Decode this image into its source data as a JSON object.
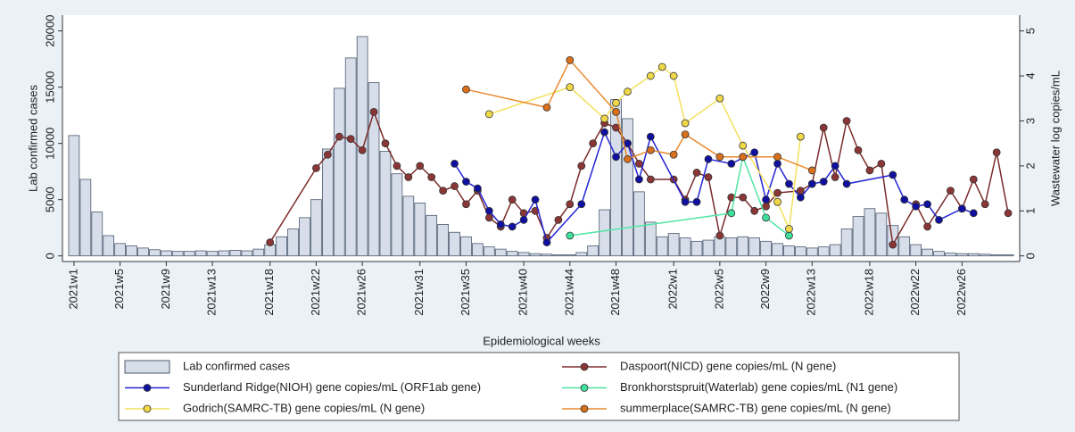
{
  "chart_data": {
    "type": "bar",
    "xlabel": "Epidemiological weeks",
    "ylabel": "Lab  confirmed cases",
    "y2label": "Wastewater log copies/mL",
    "xlim": [
      -1,
      82
    ],
    "xticks": [
      {
        "value": 0,
        "label": "2021w1"
      },
      {
        "value": 4,
        "label": "2021w5"
      },
      {
        "value": 8,
        "label": "2021w9"
      },
      {
        "value": 12,
        "label": "2021w13"
      },
      {
        "value": 17,
        "label": "2021w18"
      },
      {
        "value": 21,
        "label": "2021w22"
      },
      {
        "value": 25,
        "label": "2021w26"
      },
      {
        "value": 30,
        "label": "2021w31"
      },
      {
        "value": 34,
        "label": "2021w35"
      },
      {
        "value": 39,
        "label": "2021w40"
      },
      {
        "value": 43,
        "label": "2021w44"
      },
      {
        "value": 47,
        "label": "2021w48"
      },
      {
        "value": 52,
        "label": "2022w1"
      },
      {
        "value": 56,
        "label": "2022w5"
      },
      {
        "value": 60,
        "label": "2022w9"
      },
      {
        "value": 64,
        "label": "2022w13"
      },
      {
        "value": 69,
        "label": "2022w18"
      },
      {
        "value": 73,
        "label": "2022w22"
      },
      {
        "value": 77,
        "label": "2022w26"
      }
    ],
    "ylim": [
      -500,
      21400
    ],
    "yticks": [
      0,
      5000,
      10000,
      15000,
      20000
    ],
    "y2lim": [
      -0.125,
      5.35
    ],
    "y2ticks": [
      0,
      1,
      2,
      3,
      4,
      5
    ],
    "grid": false,
    "series": [
      {
        "name": "Lab  confirmed cases",
        "type": "bar",
        "color": "#d7deea",
        "marker_color": "#4c5a6e",
        "x": [
          0,
          1,
          2,
          3,
          4,
          5,
          6,
          7,
          8,
          9,
          10,
          11,
          12,
          13,
          14,
          15,
          16,
          17,
          18,
          19,
          20,
          21,
          22,
          23,
          24,
          25,
          26,
          27,
          28,
          29,
          30,
          31,
          32,
          33,
          34,
          35,
          36,
          37,
          38,
          39,
          40,
          41,
          42,
          43,
          44,
          45,
          46,
          47,
          48,
          49,
          50,
          51,
          52,
          53,
          54,
          55,
          56,
          57,
          58,
          59,
          60,
          61,
          62,
          63,
          64,
          65,
          66,
          67,
          68,
          69,
          70,
          71,
          72,
          73,
          74,
          75,
          76,
          77,
          78,
          79,
          80,
          81
        ],
        "values": [
          10700,
          6800,
          3900,
          1800,
          1100,
          900,
          700,
          550,
          450,
          400,
          400,
          450,
          400,
          450,
          500,
          450,
          600,
          1000,
          1700,
          2400,
          3400,
          5000,
          9500,
          14900,
          17600,
          19500,
          15400,
          9300,
          7300,
          5300,
          4700,
          3600,
          2800,
          2100,
          1700,
          1100,
          800,
          600,
          400,
          300,
          200,
          150,
          100,
          100,
          300,
          900,
          4100,
          13900,
          12200,
          5700,
          3000,
          1700,
          2000,
          1600,
          1300,
          1400,
          1700,
          1600,
          1700,
          1600,
          1300,
          1100,
          900,
          800,
          700,
          800,
          1000,
          2400,
          3500,
          4200,
          3800,
          2700,
          1700,
          1000,
          600,
          400,
          250,
          200,
          200,
          150,
          100,
          100
        ]
      },
      {
        "name": "Daspoort(NICD) gene copies/mL (N gene)",
        "type": "line",
        "axis": "y2",
        "color": "#7b2a2a",
        "marker_color": "#8b3636",
        "x": [
          17,
          21,
          22,
          23,
          24,
          25,
          26,
          27,
          28,
          29,
          30,
          31,
          32,
          33,
          34,
          35,
          36,
          37,
          38,
          39,
          40,
          41,
          42,
          43,
          44,
          45,
          46,
          47,
          48,
          49,
          50,
          52,
          53,
          54,
          55,
          56,
          57,
          58,
          59,
          60,
          61,
          63,
          64,
          65,
          66,
          67,
          68,
          69,
          70,
          71,
          73,
          74,
          76,
          77,
          78,
          79,
          80,
          81
        ],
        "values": [
          0.3,
          1.95,
          2.25,
          2.65,
          2.6,
          2.35,
          3.2,
          2.5,
          2.0,
          1.75,
          2.0,
          1.75,
          1.45,
          1.55,
          1.15,
          1.45,
          0.85,
          0.65,
          1.25,
          0.95,
          1.0,
          0.4,
          0.8,
          1.15,
          2.0,
          2.5,
          2.95,
          2.85,
          2.5,
          2.05,
          1.7,
          1.7,
          1.25,
          1.85,
          1.75,
          0.45,
          1.3,
          1.3,
          1.0,
          1.1,
          1.4,
          1.45,
          1.6,
          2.85,
          1.75,
          3.0,
          2.35,
          1.9,
          2.05,
          0.25,
          1.15,
          0.65,
          1.45,
          1.05,
          1.7,
          1.15,
          2.3,
          0.95
        ]
      },
      {
        "name": "Sunderland Ridge(NIOH) gene copies/mL (ORF1ab gene)",
        "type": "line",
        "axis": "y2",
        "color": "#2424d4",
        "marker_color": "#1010a0",
        "x": [
          33,
          34,
          35,
          36,
          37,
          38,
          39,
          40,
          41,
          44,
          46,
          47,
          48,
          49,
          50,
          53,
          54,
          55,
          57,
          59,
          60,
          61,
          62,
          63,
          64,
          65,
          66,
          67,
          71,
          72,
          73,
          74,
          75,
          77,
          78
        ],
        "values": [
          2.05,
          1.65,
          1.5,
          1.0,
          0.7,
          0.65,
          0.8,
          1.25,
          0.3,
          1.15,
          2.75,
          2.2,
          2.5,
          1.7,
          2.65,
          1.2,
          1.2,
          2.15,
          2.05,
          2.3,
          1.25,
          2.05,
          1.6,
          1.3,
          1.6,
          1.65,
          2.0,
          1.6,
          1.8,
          1.25,
          1.1,
          1.15,
          0.8,
          1.05,
          0.95
        ]
      },
      {
        "name": " Bronkhorstspruit(Waterlab) gene copies/mL (N1 gene)",
        "type": "line",
        "axis": "y2",
        "color": "#4fe6a6",
        "marker_color": "#3ee09c",
        "x": [
          43,
          57,
          58,
          60,
          62
        ],
        "values": [
          0.45,
          0.95,
          2.2,
          0.85,
          0.45
        ]
      },
      {
        "name": "Godrich(SAMRC-TB) gene copies/mL (N gene)",
        "type": "line",
        "axis": "y2",
        "color": "#f4e05c",
        "marker_color": "#f0d848",
        "x": [
          36,
          43,
          46,
          47,
          48,
          50,
          51,
          52,
          53,
          56,
          58,
          61,
          62,
          63
        ],
        "values": [
          3.15,
          3.75,
          3.05,
          3.4,
          3.65,
          4.0,
          4.2,
          4.0,
          2.95,
          3.5,
          2.45,
          1.2,
          0.6,
          2.65
        ]
      },
      {
        "name": "summerplace(SAMRC-TB) gene copies/mL (N gene)",
        "type": "line",
        "axis": "y2",
        "color": "#e88a2e",
        "marker_color": "#d8701c",
        "x": [
          34,
          41,
          43,
          47,
          48,
          50,
          52,
          53,
          56,
          58,
          61,
          64
        ],
        "values": [
          3.7,
          3.3,
          4.35,
          3.2,
          2.15,
          2.35,
          2.25,
          2.7,
          2.2,
          2.2,
          2.2,
          1.9
        ]
      }
    ]
  }
}
